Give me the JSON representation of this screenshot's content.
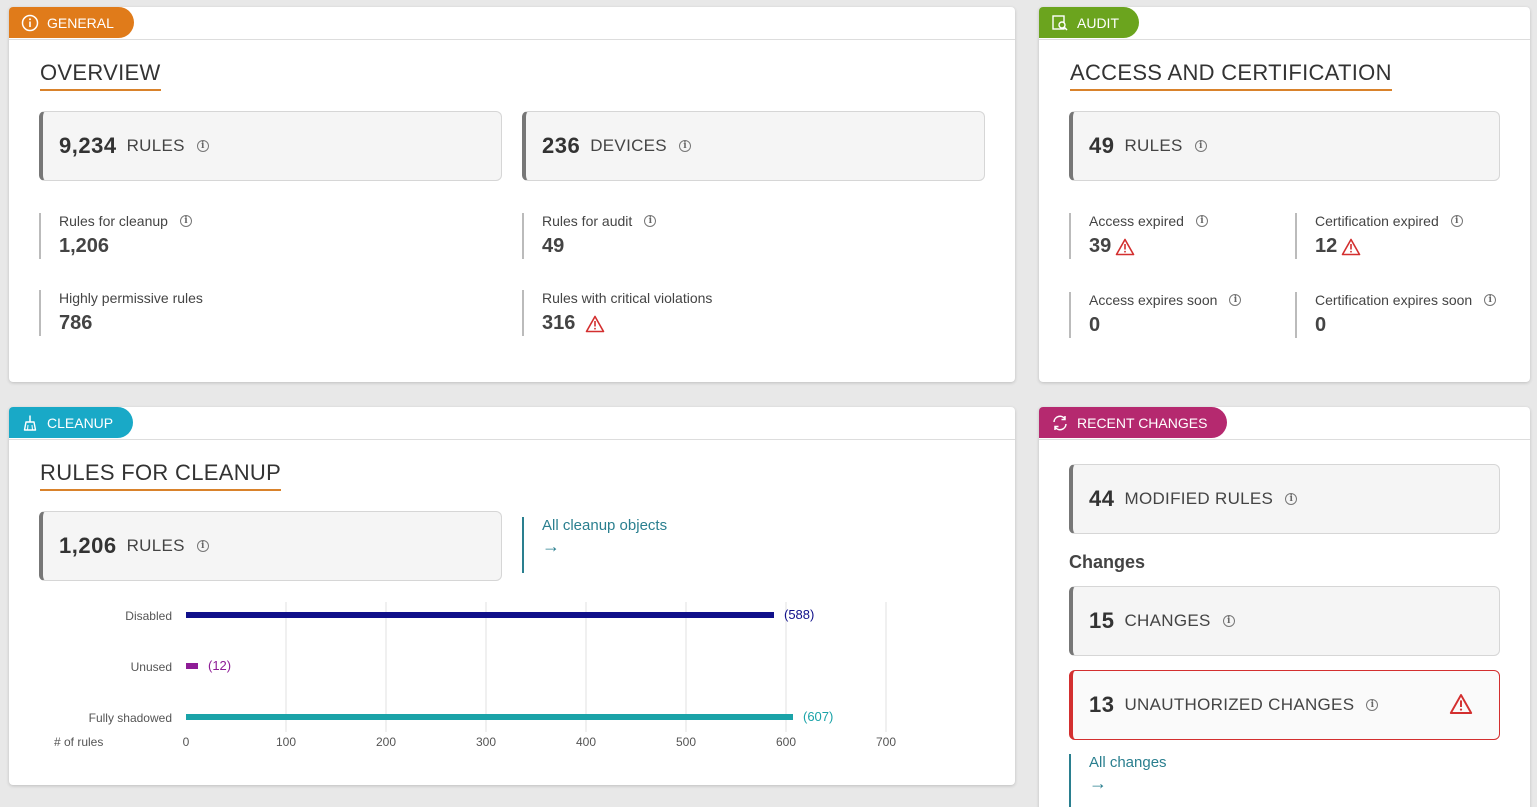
{
  "colors": {
    "general": "#e07b1a",
    "audit": "#6ba41e",
    "cleanup": "#19a9c7",
    "recent": "#b5296f",
    "accent_underline": "#d9822b",
    "link": "#2a7f8f",
    "alert": "#d32f2f"
  },
  "general": {
    "tag": "GENERAL",
    "title": "OVERVIEW",
    "rules_kpi": {
      "value": "9,234",
      "label": "RULES"
    },
    "devices_kpi": {
      "value": "236",
      "label": "DEVICES"
    },
    "stats": [
      {
        "label": "Rules for cleanup",
        "value": "1,206"
      },
      {
        "label": "Rules for audit",
        "value": "49"
      },
      {
        "label": "Highly permissive rules",
        "value": "786"
      },
      {
        "label": "Rules with critical violations",
        "value": "316"
      }
    ]
  },
  "audit": {
    "tag": "AUDIT",
    "title": "ACCESS AND CERTIFICATION",
    "rules_kpi": {
      "value": "49",
      "label": "RULES"
    },
    "stats": [
      {
        "label": "Access expired",
        "value": "39"
      },
      {
        "label": "Certification expired",
        "value": "12"
      },
      {
        "label": "Access expires soon",
        "value": "0"
      },
      {
        "label": "Certification expires soon",
        "value": "0"
      }
    ]
  },
  "cleanup": {
    "tag": "CLEANUP",
    "title": "RULES FOR CLEANUP",
    "rules_kpi": {
      "value": "1,206",
      "label": "RULES"
    },
    "link_text": "All cleanup objects",
    "link_arrow": "→"
  },
  "recent": {
    "tag": "RECENT CHANGES",
    "modified_kpi": {
      "value": "44",
      "label": "MODIFIED RULES"
    },
    "changes_heading": "Changes",
    "changes_kpi": {
      "value": "15",
      "label": "CHANGES"
    },
    "unauth_kpi": {
      "value": "13",
      "label": "UNAUTHORIZED CHANGES"
    },
    "link_text": "All changes",
    "link_arrow": "→"
  },
  "chart_data": {
    "type": "bar",
    "orientation": "horizontal",
    "categories": [
      "Disabled",
      "Unused",
      "Fully shadowed"
    ],
    "values": [
      588,
      12,
      607
    ],
    "value_labels": [
      "(588)",
      "(12)",
      "(607)"
    ],
    "colors": [
      "#10108a",
      "#8e1c96",
      "#1aa3a8"
    ],
    "xlabel": "# of rules",
    "xlim": [
      0,
      700
    ],
    "xticks": [
      0,
      100,
      200,
      300,
      400,
      500,
      600,
      700
    ],
    "grid": true
  }
}
